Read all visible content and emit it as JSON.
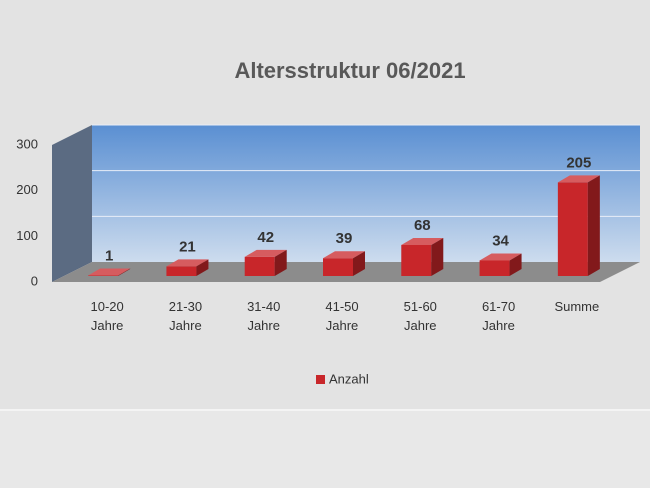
{
  "chart_data": {
    "type": "bar",
    "title": "Altersstruktur 06/2021",
    "categories": [
      "10-20 Jahre",
      "21-30 Jahre",
      "31-40 Jahre",
      "41-50 Jahre",
      "51-60 Jahre",
      "61-70 Jahre",
      "Summe"
    ],
    "series": [
      {
        "name": "Anzahl",
        "color": "#c8262a",
        "values": [
          1,
          21,
          42,
          39,
          68,
          34,
          205
        ]
      }
    ],
    "ylim": [
      0,
      300
    ],
    "yticks": [
      0,
      100,
      200,
      300
    ],
    "grid": true,
    "legend": "bottom"
  }
}
